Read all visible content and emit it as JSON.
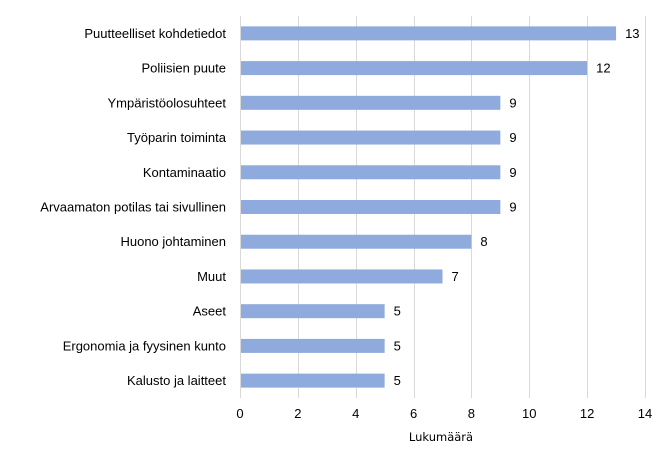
{
  "chart_data": {
    "type": "bar",
    "orientation": "horizontal",
    "categories": [
      "Puutteelliset kohdetiedot",
      "Poliisien puute",
      "Ympäristöolosuhteet",
      "Työparin toiminta",
      "Kontaminaatio",
      "Arvaamaton potilas tai sivullinen",
      "Huono johtaminen",
      "Muut",
      "Aseet",
      "Ergonomia ja fyysinen kunto",
      "Kalusto ja laitteet"
    ],
    "values": [
      13,
      12,
      9,
      9,
      9,
      9,
      8,
      7,
      5,
      5,
      5
    ],
    "xlabel": "Lukumäärä",
    "ylabel": "",
    "xlim": [
      0,
      14
    ],
    "xticks": [
      0,
      2,
      4,
      6,
      8,
      10,
      12,
      14
    ],
    "grid": true,
    "data_labels": true,
    "bar_color": "#8faadc",
    "legend": "none"
  }
}
